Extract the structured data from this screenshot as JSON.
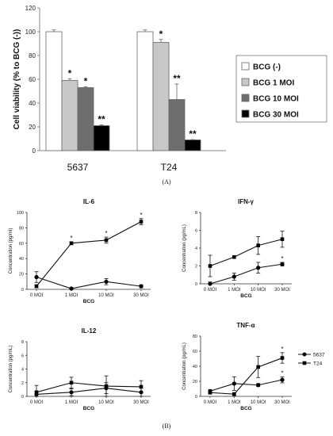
{
  "panel_labels": [
    "(A)",
    "(B)"
  ],
  "chart_data": [
    {
      "type": "bar",
      "panel": "A",
      "ylabel": "Cell viability (% to BCG (-))",
      "ylim": [
        0,
        120
      ],
      "yticks": [
        0,
        20,
        40,
        60,
        80,
        100,
        120
      ],
      "categories": [
        "5637",
        "T24"
      ],
      "series": [
        {
          "name": "BCG (-)",
          "values": [
            100,
            100
          ],
          "errors": [
            1.5,
            1.5
          ],
          "markers": [
            "",
            ""
          ],
          "color": "#ffffff"
        },
        {
          "name": "BCG 1 MOI",
          "values": [
            59,
            91
          ],
          "errors": [
            1.5,
            2.5
          ],
          "markers": [
            "*",
            "*"
          ],
          "color": "#c8c8c8"
        },
        {
          "name": "BCG 10 MOI",
          "values": [
            53,
            43
          ],
          "errors": [
            0.8,
            13
          ],
          "markers": [
            "*",
            "**"
          ],
          "color": "#6e6e6e"
        },
        {
          "name": "BCG 30 MOI",
          "values": [
            21,
            9
          ],
          "errors": [
            0.8,
            0.3
          ],
          "markers": [
            "**",
            "**"
          ],
          "color": "#000000"
        }
      ],
      "legend_position": "right"
    },
    {
      "type": "line",
      "panel": "B",
      "title": "IL-6",
      "xlabel": "BCG",
      "ylabel": "Concentration (pg/ml)",
      "categories": [
        "0 MOI",
        "1 MOI",
        "10 MOI",
        "30 MOI"
      ],
      "ylim": [
        0,
        100
      ],
      "yticks": [
        0,
        20,
        40,
        60,
        80,
        100
      ],
      "series": [
        {
          "name": "5637",
          "marker": "circle",
          "values": [
            16,
            1,
            10,
            4
          ],
          "errors": [
            7,
            1,
            4,
            2
          ],
          "stars": [
            "",
            "",
            "",
            ""
          ]
        },
        {
          "name": "T24",
          "marker": "square",
          "values": [
            4,
            60,
            64,
            88
          ],
          "errors": [
            2,
            2,
            4,
            4
          ],
          "stars": [
            "",
            "*",
            "*",
            "*"
          ]
        }
      ]
    },
    {
      "type": "line",
      "panel": "B",
      "title": "IFN-γ",
      "xlabel": "BCG",
      "ylabel": "Concentration (pg/mL)",
      "categories": [
        "0 MOI",
        "1 MOI",
        "10 MOI",
        "30 MOI"
      ],
      "ylim": [
        0,
        8
      ],
      "yticks": [
        0,
        2,
        4,
        6,
        8
      ],
      "series": [
        {
          "name": "5637",
          "marker": "circle",
          "values": [
            0,
            0.8,
            1.8,
            2.2
          ],
          "errors": [
            0.2,
            0.4,
            0.6,
            0.2
          ],
          "stars": [
            "",
            "",
            "",
            "*"
          ]
        },
        {
          "name": "T24",
          "marker": "square",
          "values": [
            2,
            3,
            4.3,
            5
          ],
          "errors": [
            1.2,
            0.1,
            1,
            0.9
          ],
          "stars": [
            "",
            "",
            "",
            ""
          ]
        }
      ]
    },
    {
      "type": "line",
      "panel": "B",
      "title": "IL-12",
      "xlabel": "BCG",
      "ylabel": "Concentration (pg/mL)",
      "categories": [
        "0 MOI",
        "1 MOI",
        "10 MOI",
        "30 MOI"
      ],
      "ylim": [
        0,
        8
      ],
      "yticks": [
        0,
        2,
        4,
        6,
        8
      ],
      "series": [
        {
          "name": "5637",
          "marker": "circle",
          "values": [
            0.3,
            0.6,
            1.2,
            0.6
          ],
          "errors": [
            0.4,
            0.5,
            0.8,
            0.6
          ],
          "stars": [
            "",
            "",
            "",
            ""
          ]
        },
        {
          "name": "T24",
          "marker": "square",
          "values": [
            0.6,
            2,
            1.5,
            1.4
          ],
          "errors": [
            1,
            0.8,
            1.5,
            0.9
          ],
          "stars": [
            "",
            "",
            "",
            ""
          ]
        }
      ]
    },
    {
      "type": "line",
      "panel": "B",
      "title": "TNF-α",
      "xlabel": "BCG",
      "ylabel": "Concentration (pg/mL)",
      "categories": [
        "0 MOI",
        "1 MOI",
        "10 MOI",
        "30 MOI"
      ],
      "ylim": [
        0,
        80
      ],
      "yticks": [
        0,
        20,
        40,
        60,
        80
      ],
      "series": [
        {
          "name": "5637",
          "marker": "circle",
          "values": [
            7,
            17,
            15,
            22
          ],
          "errors": [
            2,
            9,
            2,
            4
          ],
          "stars": [
            "",
            "",
            "",
            "*"
          ]
        },
        {
          "name": "T24",
          "marker": "square",
          "values": [
            5,
            3,
            39,
            51
          ],
          "errors": [
            2,
            2,
            14,
            7
          ],
          "stars": [
            "",
            "",
            "",
            "*"
          ]
        }
      ]
    }
  ]
}
